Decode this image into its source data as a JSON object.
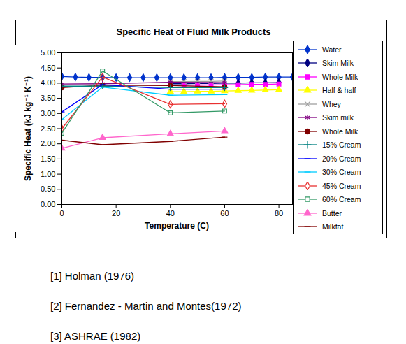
{
  "chart_data": {
    "type": "line",
    "title": "Specific Heat of Fluid Milk Products",
    "x_label": "Temperature (C)",
    "y_label": "Specific Heat (kJ kg⁻¹ K⁻¹)",
    "xlim": [
      0,
      85
    ],
    "xticks": [
      0,
      20,
      40,
      60,
      80
    ],
    "ylim": [
      0,
      5
    ],
    "yticks": [
      {
        "value": 0,
        "label": "0.00"
      },
      {
        "value": 0.5,
        "label": "0.50"
      },
      {
        "value": 1,
        "label": "1.00"
      },
      {
        "value": 1.5,
        "label": "1.50"
      },
      {
        "value": 2,
        "label": "2.00"
      },
      {
        "value": 2.5,
        "label": "2.50"
      },
      {
        "value": 3,
        "label": "3.00"
      },
      {
        "value": 3.5,
        "label": "3.50"
      },
      {
        "value": 4,
        "label": "4.00"
      },
      {
        "value": 4.5,
        "label": "4.50"
      },
      {
        "value": 5,
        "label": "5.00"
      }
    ],
    "grid": false,
    "legend": "right",
    "series": [
      {
        "name": "Water",
        "color": "#0033cc",
        "marker": "diamond",
        "x": [
          0,
          5,
          10,
          15,
          20,
          25,
          30,
          35,
          40,
          45,
          50,
          55,
          60,
          65,
          70,
          75,
          80,
          85
        ],
        "values": [
          4.22,
          4.2,
          4.19,
          4.19,
          4.18,
          4.18,
          4.18,
          4.18,
          4.18,
          4.18,
          4.18,
          4.18,
          4.19,
          4.19,
          4.19,
          4.2,
          4.2,
          4.2
        ]
      },
      {
        "name": "Skim Milk",
        "color": "#000080",
        "marker": "diamond",
        "x": [
          40,
          45,
          50,
          55,
          60,
          65,
          70,
          75,
          80
        ],
        "values": [
          3.98,
          3.98,
          3.99,
          3.99,
          4.0,
          4.0,
          4.01,
          4.01,
          4.02
        ]
      },
      {
        "name": "Whole Milk",
        "color": "#ff00ff",
        "marker": "square",
        "x": [
          40,
          45,
          50,
          55,
          60,
          65,
          70,
          75,
          80
        ],
        "values": [
          3.93,
          3.93,
          3.94,
          3.94,
          3.95,
          3.95,
          3.96,
          3.96,
          3.97
        ]
      },
      {
        "name": "Half & half",
        "color": "#ffff00",
        "marker": "triangle",
        "x": [
          40,
          45,
          50,
          55,
          60,
          65,
          70,
          75,
          80
        ],
        "values": [
          3.72,
          3.72,
          3.73,
          3.73,
          3.74,
          3.75,
          3.76,
          3.77,
          3.78
        ]
      },
      {
        "name": "Whey",
        "color": "#a0a0a0",
        "marker": "times",
        "x": [
          40,
          45,
          50,
          55,
          60
        ],
        "values": [
          4.05,
          4.05,
          4.06,
          4.06,
          4.07
        ]
      },
      {
        "name": "Skim milk",
        "color": "#800080",
        "marker": "asterisk",
        "x": [
          0,
          15,
          40,
          60
        ],
        "values": [
          3.97,
          3.98,
          4.03,
          4.02
        ]
      },
      {
        "name": "Whole Milk",
        "color": "#800000",
        "marker": "circle",
        "x": [
          0,
          15,
          40,
          60
        ],
        "values": [
          3.85,
          3.93,
          3.92,
          3.88
        ]
      },
      {
        "name": "15%  Cream",
        "color": "#008080",
        "marker": "plus",
        "x": [
          0,
          15,
          40,
          60
        ],
        "values": [
          3.9,
          3.9,
          3.85,
          3.85
        ]
      },
      {
        "name": "20% Cream",
        "color": "#0000ff",
        "marker": "dash",
        "x": [
          0,
          15,
          40,
          60
        ],
        "values": [
          3.05,
          3.95,
          3.8,
          3.8
        ]
      },
      {
        "name": "30% Cream",
        "color": "#00ccff",
        "marker": "dash",
        "x": [
          0,
          15,
          40,
          60
        ],
        "values": [
          2.8,
          3.87,
          3.6,
          3.62
        ]
      },
      {
        "name": "45% Cream",
        "color": "#e83030",
        "marker": "open diamond",
        "x": [
          0,
          15,
          40,
          60
        ],
        "values": [
          2.5,
          4.2,
          3.3,
          3.32
        ]
      },
      {
        "name": "60% Cream",
        "color": "#339966",
        "marker": "open square",
        "x": [
          0,
          15,
          40,
          60
        ],
        "values": [
          2.35,
          4.4,
          3.02,
          3.08
        ]
      },
      {
        "name": "Butter",
        "color": "#ff66cc",
        "marker": "triangle",
        "x": [
          0,
          15,
          40,
          60
        ],
        "values": [
          1.85,
          2.2,
          2.33,
          2.42
        ]
      },
      {
        "name": "Milkfat",
        "color": "#800000",
        "marker": "dash",
        "x": [
          0,
          15,
          40,
          60
        ],
        "values": [
          2.12,
          1.97,
          2.08,
          2.22
        ]
      }
    ],
    "annotations": [
      "[1] Holman (1976)",
      "[2] Fernandez - Martin and Montes(1972)",
      "[3] ASHRAE (1982)"
    ]
  }
}
